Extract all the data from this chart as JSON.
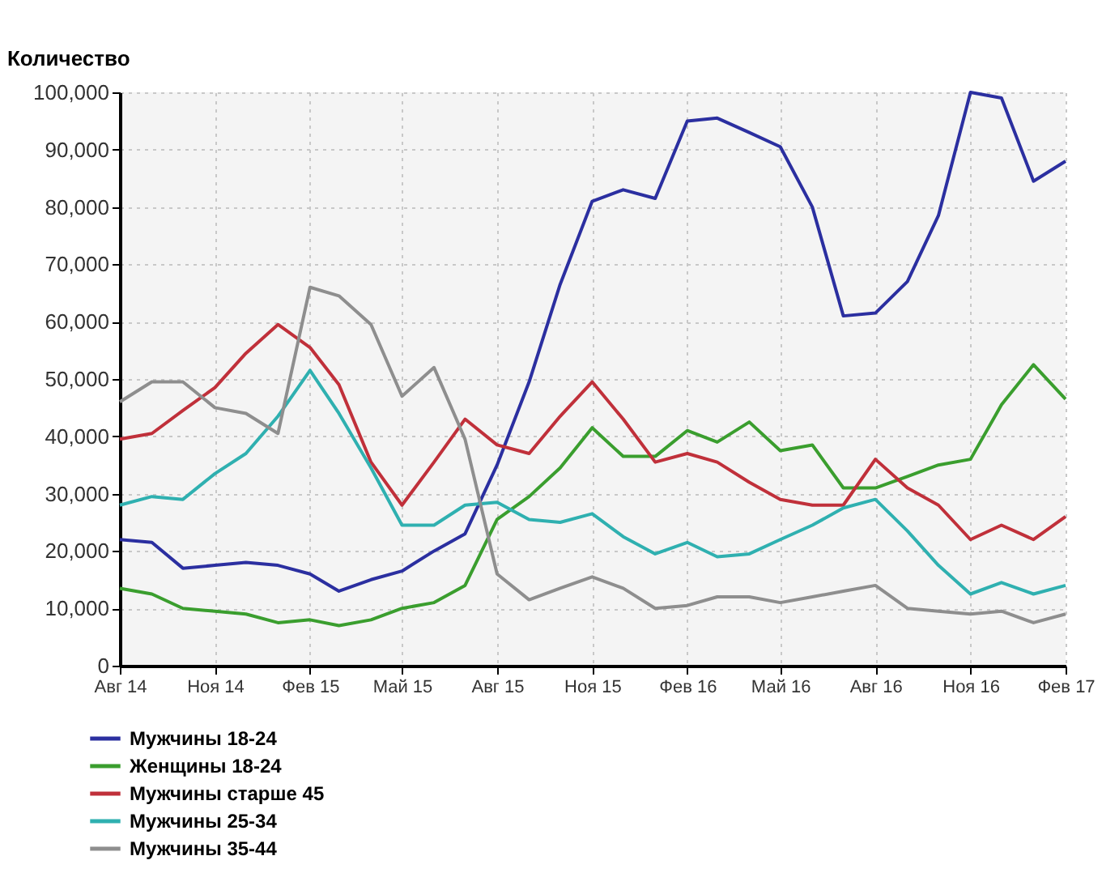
{
  "chart_data": {
    "type": "line",
    "ylabel": "Количество",
    "x": [
      "2014-08",
      "2014-09",
      "2014-10",
      "2014-11",
      "2014-12",
      "2015-01",
      "2015-02",
      "2015-03",
      "2015-04",
      "2015-05",
      "2015-06",
      "2015-07",
      "2015-08",
      "2015-09",
      "2015-10",
      "2015-11",
      "2015-12",
      "2016-01",
      "2016-02",
      "2016-03",
      "2016-04",
      "2016-05",
      "2016-06",
      "2016-07",
      "2016-08",
      "2016-09",
      "2016-10",
      "2016-11",
      "2016-12",
      "2017-01",
      "2017-02"
    ],
    "series": [
      {
        "name": "Мужчины 18-24",
        "color": "#2b2fa0",
        "values": [
          22000,
          21500,
          17000,
          17500,
          18000,
          17500,
          16000,
          13000,
          15000,
          16500,
          20000,
          23000,
          35000,
          49500,
          66500,
          81000,
          83000,
          81500,
          95000,
          95500,
          93000,
          90500,
          80000,
          61000,
          61500,
          67000,
          78500,
          100000,
          99000,
          84500,
          88000
        ]
      },
      {
        "name": "Женщины 18-24",
        "color": "#3a9e2e",
        "values": [
          13500,
          12500,
          10000,
          9500,
          9000,
          7500,
          8000,
          7000,
          8000,
          10000,
          11000,
          14000,
          25500,
          29500,
          34500,
          41500,
          36500,
          36500,
          41000,
          39000,
          42500,
          37500,
          38500,
          31000,
          31000,
          33000,
          35000,
          36000,
          45500,
          52500,
          46500
        ]
      },
      {
        "name": "Мужчины старше 45",
        "color": "#c0303a",
        "values": [
          39500,
          40500,
          44500,
          48500,
          54500,
          59500,
          55500,
          49000,
          35500,
          28000,
          35500,
          43000,
          38500,
          37000,
          43500,
          49500,
          43000,
          35500,
          37000,
          35500,
          32000,
          29000,
          28000,
          28000,
          36000,
          31000,
          28000,
          22000,
          24500,
          22000,
          26000
        ]
      },
      {
        "name": "Мужчины 25-34",
        "color": "#2fb0b0",
        "values": [
          28000,
          29500,
          29000,
          33500,
          37000,
          43500,
          51500,
          44000,
          34500,
          24500,
          24500,
          28000,
          28500,
          25500,
          25000,
          26500,
          22500,
          19500,
          21500,
          19000,
          19500,
          22000,
          24500,
          27500,
          29000,
          23500,
          17500,
          12500,
          14500,
          12500,
          14000
        ]
      },
      {
        "name": "Мужчины 35-44",
        "color": "#8e8e8e",
        "values": [
          46000,
          49500,
          49500,
          45000,
          44000,
          40500,
          66000,
          64500,
          59500,
          47000,
          52000,
          39500,
          16000,
          11500,
          13500,
          15500,
          13500,
          10000,
          10500,
          12000,
          12000,
          11000,
          12000,
          13000,
          14000,
          10000,
          9500,
          9000,
          9500,
          7500,
          9000
        ]
      }
    ],
    "ylim": [
      0,
      100000
    ],
    "yticks": [
      {
        "value": 0,
        "label": "0"
      },
      {
        "value": 10000,
        "label": "10,000"
      },
      {
        "value": 20000,
        "label": "20,000"
      },
      {
        "value": 30000,
        "label": "30,000"
      },
      {
        "value": 40000,
        "label": "40,000"
      },
      {
        "value": 50000,
        "label": "50,000"
      },
      {
        "value": 60000,
        "label": "60,000"
      },
      {
        "value": 70000,
        "label": "70,000"
      },
      {
        "value": 80000,
        "label": "80,000"
      },
      {
        "value": 90000,
        "label": "90,000"
      },
      {
        "value": 100000,
        "label": "100,000"
      }
    ],
    "xlim": [
      "2014-08",
      "2017-02"
    ],
    "xticks": [
      {
        "value": "2014-08",
        "label": "Авг 14"
      },
      {
        "value": "2014-11",
        "label": "Ноя 14"
      },
      {
        "value": "2015-02",
        "label": "Фев 15"
      },
      {
        "value": "2015-05",
        "label": "Май 15"
      },
      {
        "value": "2015-08",
        "label": "Авг 15"
      },
      {
        "value": "2015-11",
        "label": "Ноя 15"
      },
      {
        "value": "2016-02",
        "label": "Фев 16"
      },
      {
        "value": "2016-05",
        "label": "Май 16"
      },
      {
        "value": "2016-08",
        "label": "Авг 16"
      },
      {
        "value": "2016-11",
        "label": "Ноя 16"
      },
      {
        "value": "2017-02",
        "label": "Фев 17"
      }
    ],
    "grid": true,
    "legend": "bottom left",
    "marker": "none",
    "line_style": "solid"
  }
}
